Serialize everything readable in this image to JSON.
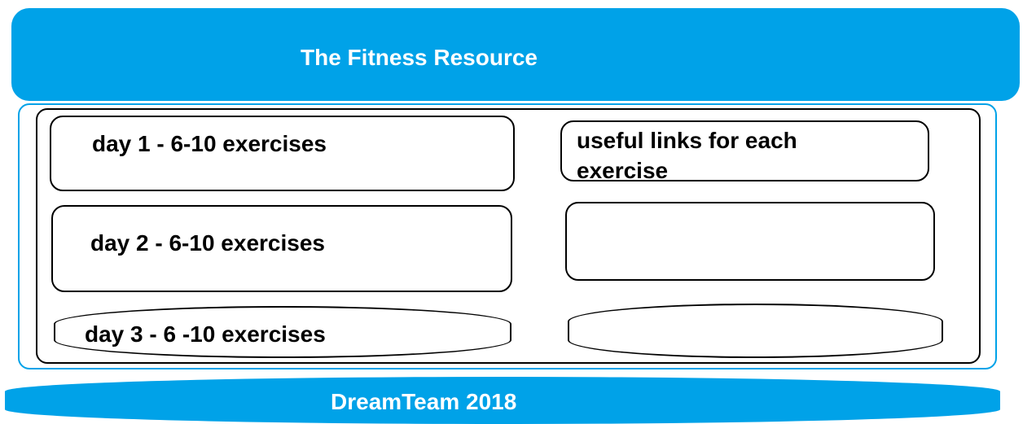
{
  "header": {
    "title": "The Fitness Resource"
  },
  "days": [
    {
      "label": "day 1 - 6-10 exercises"
    },
    {
      "label": "day 2 - 6-10 exercises"
    },
    {
      "label": "day 3 - 6 -10 exercises"
    }
  ],
  "links": [
    {
      "label": "useful links for each exercise"
    },
    {
      "label": ""
    },
    {
      "label": ""
    }
  ],
  "footer": {
    "title": "DreamTeam 2018"
  },
  "colors": {
    "accent": "#00a2e8",
    "border": "#000000",
    "header_text": "#ffffff"
  }
}
